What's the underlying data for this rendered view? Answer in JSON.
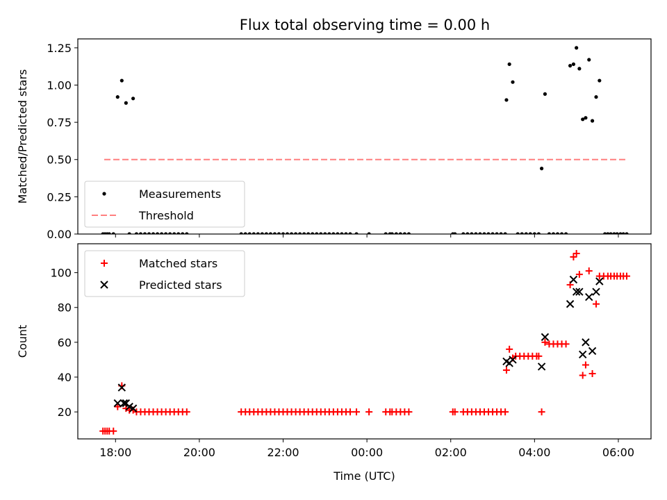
{
  "figure_title": "Flux total observing time = 0.00 h",
  "chart_data": [
    {
      "type": "scatter",
      "ylabel": "Matched/Predicted stars",
      "xlabel": "",
      "x_unit": "hours since 18:00 UTC",
      "xlim": [
        -0.9,
        12.78
      ],
      "ylim": [
        0.0,
        1.31
      ],
      "yticks": [
        0.0,
        0.25,
        0.5,
        0.75,
        1.0,
        1.25
      ],
      "ytick_labels": [
        "0.00",
        "0.25",
        "0.50",
        "0.75",
        "1.00",
        "1.25"
      ],
      "legend": {
        "placement": "lower-left",
        "entries": [
          "Measurements",
          "Threshold"
        ]
      },
      "series": [
        {
          "name": "Measurements",
          "color": "#000000",
          "marker": "dot",
          "points": [
            [
              -0.3,
              0
            ],
            [
              -0.25,
              0
            ],
            [
              -0.2,
              0
            ],
            [
              -0.15,
              0
            ],
            [
              -0.05,
              0
            ],
            [
              0.05,
              0.92
            ],
            [
              0.15,
              1.03
            ],
            [
              0.25,
              0.88
            ],
            [
              0.33,
              0
            ],
            [
              0.42,
              0.91
            ],
            [
              0.5,
              0
            ],
            [
              0.6,
              0
            ],
            [
              0.7,
              0
            ],
            [
              0.8,
              0
            ],
            [
              0.9,
              0
            ],
            [
              1.0,
              0
            ],
            [
              1.1,
              0
            ],
            [
              1.2,
              0
            ],
            [
              1.3,
              0
            ],
            [
              1.4,
              0
            ],
            [
              1.5,
              0
            ],
            [
              1.6,
              0
            ],
            [
              1.7,
              0
            ],
            [
              3.0,
              0
            ],
            [
              3.1,
              0
            ],
            [
              3.2,
              0
            ],
            [
              3.3,
              0
            ],
            [
              3.4,
              0
            ],
            [
              3.5,
              0
            ],
            [
              3.6,
              0
            ],
            [
              3.7,
              0
            ],
            [
              3.8,
              0
            ],
            [
              3.9,
              0
            ],
            [
              4.0,
              0
            ],
            [
              4.1,
              0
            ],
            [
              4.2,
              0
            ],
            [
              4.3,
              0
            ],
            [
              4.4,
              0
            ],
            [
              4.5,
              0
            ],
            [
              4.6,
              0
            ],
            [
              4.7,
              0
            ],
            [
              4.8,
              0
            ],
            [
              4.9,
              0
            ],
            [
              5.0,
              0
            ],
            [
              5.1,
              0
            ],
            [
              5.2,
              0
            ],
            [
              5.3,
              0
            ],
            [
              5.4,
              0
            ],
            [
              5.5,
              0
            ],
            [
              5.6,
              0
            ],
            [
              5.75,
              0
            ],
            [
              6.05,
              0
            ],
            [
              6.45,
              0
            ],
            [
              6.55,
              0
            ],
            [
              6.6,
              0
            ],
            [
              6.7,
              0
            ],
            [
              6.8,
              0
            ],
            [
              6.9,
              0
            ],
            [
              7.0,
              0
            ],
            [
              8.05,
              0
            ],
            [
              8.1,
              0
            ],
            [
              8.3,
              0
            ],
            [
              8.4,
              0
            ],
            [
              8.5,
              0
            ],
            [
              8.6,
              0
            ],
            [
              8.7,
              0
            ],
            [
              8.8,
              0
            ],
            [
              8.9,
              0
            ],
            [
              9.0,
              0
            ],
            [
              9.1,
              0
            ],
            [
              9.2,
              0
            ],
            [
              9.3,
              0
            ],
            [
              9.33,
              0.9
            ],
            [
              9.4,
              1.14
            ],
            [
              9.48,
              1.02
            ],
            [
              9.6,
              0
            ],
            [
              9.7,
              0
            ],
            [
              9.8,
              0
            ],
            [
              9.9,
              0
            ],
            [
              10.0,
              0
            ],
            [
              10.1,
              0
            ],
            [
              10.17,
              0.44
            ],
            [
              10.25,
              0.94
            ],
            [
              10.35,
              0
            ],
            [
              10.45,
              0
            ],
            [
              10.55,
              0
            ],
            [
              10.65,
              0
            ],
            [
              10.75,
              0
            ],
            [
              10.85,
              1.13
            ],
            [
              10.93,
              1.14
            ],
            [
              11.0,
              1.25
            ],
            [
              11.07,
              1.11
            ],
            [
              11.15,
              0.77
            ],
            [
              11.22,
              0.78
            ],
            [
              11.3,
              1.17
            ],
            [
              11.38,
              0.76
            ],
            [
              11.47,
              0.92
            ],
            [
              11.55,
              1.03
            ],
            [
              11.68,
              0
            ],
            [
              11.75,
              0
            ],
            [
              11.82,
              0
            ],
            [
              11.9,
              0
            ],
            [
              11.97,
              0
            ],
            [
              12.05,
              0
            ],
            [
              12.12,
              0
            ],
            [
              12.2,
              0
            ]
          ]
        },
        {
          "name": "Threshold",
          "color": "#ff7f7f",
          "style": "dashed",
          "points": [
            [
              -0.27,
              0.5
            ],
            [
              12.2,
              0.5
            ]
          ]
        }
      ]
    },
    {
      "type": "scatter",
      "ylabel": "Count",
      "xlabel": "Time (UTC)",
      "x_unit": "hours since 18:00 UTC",
      "xlim": [
        -0.9,
        12.78
      ],
      "ylim": [
        4.5,
        116.6
      ],
      "xticks": [
        0,
        2,
        4,
        6,
        8,
        10,
        12
      ],
      "xtick_labels": [
        "18:00",
        "20:00",
        "22:00",
        "00:00",
        "02:00",
        "04:00",
        "06:00"
      ],
      "yticks": [
        20,
        40,
        60,
        80,
        100
      ],
      "ytick_labels": [
        "20",
        "40",
        "60",
        "80",
        "100"
      ],
      "legend": {
        "placement": "upper-left",
        "entries": [
          "Matched stars",
          "Predicted stars"
        ]
      },
      "series": [
        {
          "name": "Matched stars",
          "color": "#ff0000",
          "marker": "plus",
          "points": [
            [
              -0.3,
              9
            ],
            [
              -0.25,
              9
            ],
            [
              -0.2,
              9
            ],
            [
              -0.15,
              9
            ],
            [
              -0.05,
              9
            ],
            [
              0.05,
              23
            ],
            [
              0.15,
              35
            ],
            [
              0.25,
              22
            ],
            [
              0.33,
              21
            ],
            [
              0.42,
              21
            ],
            [
              0.5,
              20
            ],
            [
              0.6,
              20
            ],
            [
              0.7,
              20
            ],
            [
              0.8,
              20
            ],
            [
              0.9,
              20
            ],
            [
              1.0,
              20
            ],
            [
              1.1,
              20
            ],
            [
              1.2,
              20
            ],
            [
              1.3,
              20
            ],
            [
              1.4,
              20
            ],
            [
              1.5,
              20
            ],
            [
              1.6,
              20
            ],
            [
              1.7,
              20
            ],
            [
              3.0,
              20
            ],
            [
              3.1,
              20
            ],
            [
              3.2,
              20
            ],
            [
              3.3,
              20
            ],
            [
              3.4,
              20
            ],
            [
              3.5,
              20
            ],
            [
              3.6,
              20
            ],
            [
              3.7,
              20
            ],
            [
              3.8,
              20
            ],
            [
              3.9,
              20
            ],
            [
              4.0,
              20
            ],
            [
              4.1,
              20
            ],
            [
              4.2,
              20
            ],
            [
              4.3,
              20
            ],
            [
              4.4,
              20
            ],
            [
              4.5,
              20
            ],
            [
              4.6,
              20
            ],
            [
              4.7,
              20
            ],
            [
              4.8,
              20
            ],
            [
              4.9,
              20
            ],
            [
              5.0,
              20
            ],
            [
              5.1,
              20
            ],
            [
              5.2,
              20
            ],
            [
              5.3,
              20
            ],
            [
              5.4,
              20
            ],
            [
              5.5,
              20
            ],
            [
              5.6,
              20
            ],
            [
              5.75,
              20
            ],
            [
              6.05,
              20
            ],
            [
              6.45,
              20
            ],
            [
              6.55,
              20
            ],
            [
              6.6,
              20
            ],
            [
              6.7,
              20
            ],
            [
              6.8,
              20
            ],
            [
              6.9,
              20
            ],
            [
              7.0,
              20
            ],
            [
              8.05,
              20
            ],
            [
              8.1,
              20
            ],
            [
              8.3,
              20
            ],
            [
              8.4,
              20
            ],
            [
              8.5,
              20
            ],
            [
              8.6,
              20
            ],
            [
              8.7,
              20
            ],
            [
              8.8,
              20
            ],
            [
              8.9,
              20
            ],
            [
              9.0,
              20
            ],
            [
              9.1,
              20
            ],
            [
              9.2,
              20
            ],
            [
              9.3,
              20
            ],
            [
              9.33,
              44
            ],
            [
              9.4,
              56
            ],
            [
              9.48,
              51
            ],
            [
              9.55,
              52
            ],
            [
              9.65,
              52
            ],
            [
              9.75,
              52
            ],
            [
              9.85,
              52
            ],
            [
              9.95,
              52
            ],
            [
              10.05,
              52
            ],
            [
              10.1,
              52
            ],
            [
              10.17,
              20
            ],
            [
              10.25,
              60
            ],
            [
              10.35,
              59
            ],
            [
              10.45,
              59
            ],
            [
              10.55,
              59
            ],
            [
              10.65,
              59
            ],
            [
              10.75,
              59
            ],
            [
              10.85,
              93
            ],
            [
              10.93,
              109
            ],
            [
              11.0,
              111
            ],
            [
              11.07,
              99
            ],
            [
              11.15,
              41
            ],
            [
              11.22,
              47
            ],
            [
              11.3,
              101
            ],
            [
              11.38,
              42
            ],
            [
              11.47,
              82
            ],
            [
              11.55,
              98
            ],
            [
              11.65,
              98
            ],
            [
              11.75,
              98
            ],
            [
              11.82,
              98
            ],
            [
              11.9,
              98
            ],
            [
              11.97,
              98
            ],
            [
              12.05,
              98
            ],
            [
              12.12,
              98
            ],
            [
              12.2,
              98
            ]
          ]
        },
        {
          "name": "Predicted stars",
          "color": "#000000",
          "marker": "x",
          "points": [
            [
              0.05,
              25
            ],
            [
              0.15,
              34
            ],
            [
              0.2,
              25
            ],
            [
              0.25,
              25
            ],
            [
              0.33,
              23
            ],
            [
              0.42,
              22
            ],
            [
              9.33,
              49
            ],
            [
              9.4,
              48
            ],
            [
              9.48,
              50
            ],
            [
              10.17,
              46
            ],
            [
              10.25,
              63
            ],
            [
              10.85,
              82
            ],
            [
              10.93,
              96
            ],
            [
              11.0,
              89
            ],
            [
              11.07,
              89
            ],
            [
              11.15,
              53
            ],
            [
              11.22,
              60
            ],
            [
              11.3,
              86
            ],
            [
              11.38,
              55
            ],
            [
              11.47,
              89
            ],
            [
              11.55,
              95
            ]
          ]
        }
      ]
    }
  ]
}
